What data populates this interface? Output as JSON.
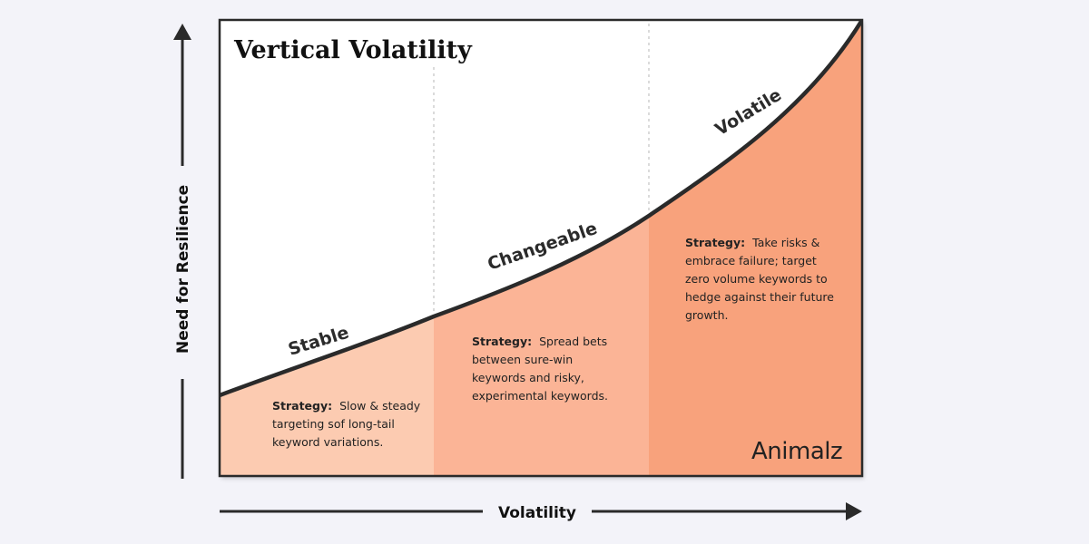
{
  "title": "Vertical Volatility",
  "x_axis_label": "Volatility",
  "y_axis_label": "Need for Resilience",
  "brand": "Animalz",
  "colors": {
    "background": "#f3f3f9",
    "frame": "#2a2a2a",
    "zone_stable": "#fccbb1",
    "zone_changeable": "#fbb496",
    "zone_volatile": "#f8a27c",
    "curve": "#2a2a2a",
    "divider": "#cfcfcf"
  },
  "zones": [
    {
      "name": "Stable",
      "strategy_key": "Strategy:",
      "strategy_lines": [
        "Slow & steady",
        "targeting sof long-tail",
        "keyword variations."
      ]
    },
    {
      "name": "Changeable",
      "strategy_key": "Strategy:",
      "strategy_lines": [
        "Spread bets",
        "between sure-win",
        "keywords and risky,",
        "experimental keywords."
      ]
    },
    {
      "name": "Volatile",
      "strategy_key": "Strategy:",
      "strategy_lines": [
        "Take risks &",
        "embrace failure; target",
        "zero volume keywords to",
        "hedge against their future",
        "growth."
      ]
    }
  ]
}
